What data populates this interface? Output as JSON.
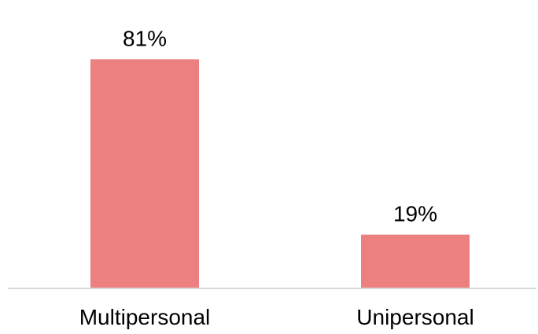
{
  "chart_data": {
    "type": "bar",
    "categories": [
      "Multipersonal",
      "Unipersonal"
    ],
    "values": [
      81,
      19
    ],
    "data_labels": [
      "81%",
      "19%"
    ],
    "unit": "%",
    "title": "",
    "xlabel": "",
    "ylabel": "",
    "ylim": [
      0,
      100
    ],
    "grid": false,
    "legend": "none",
    "bar_color": "#ec7f7f",
    "axis_color": "#d9d9d9"
  }
}
